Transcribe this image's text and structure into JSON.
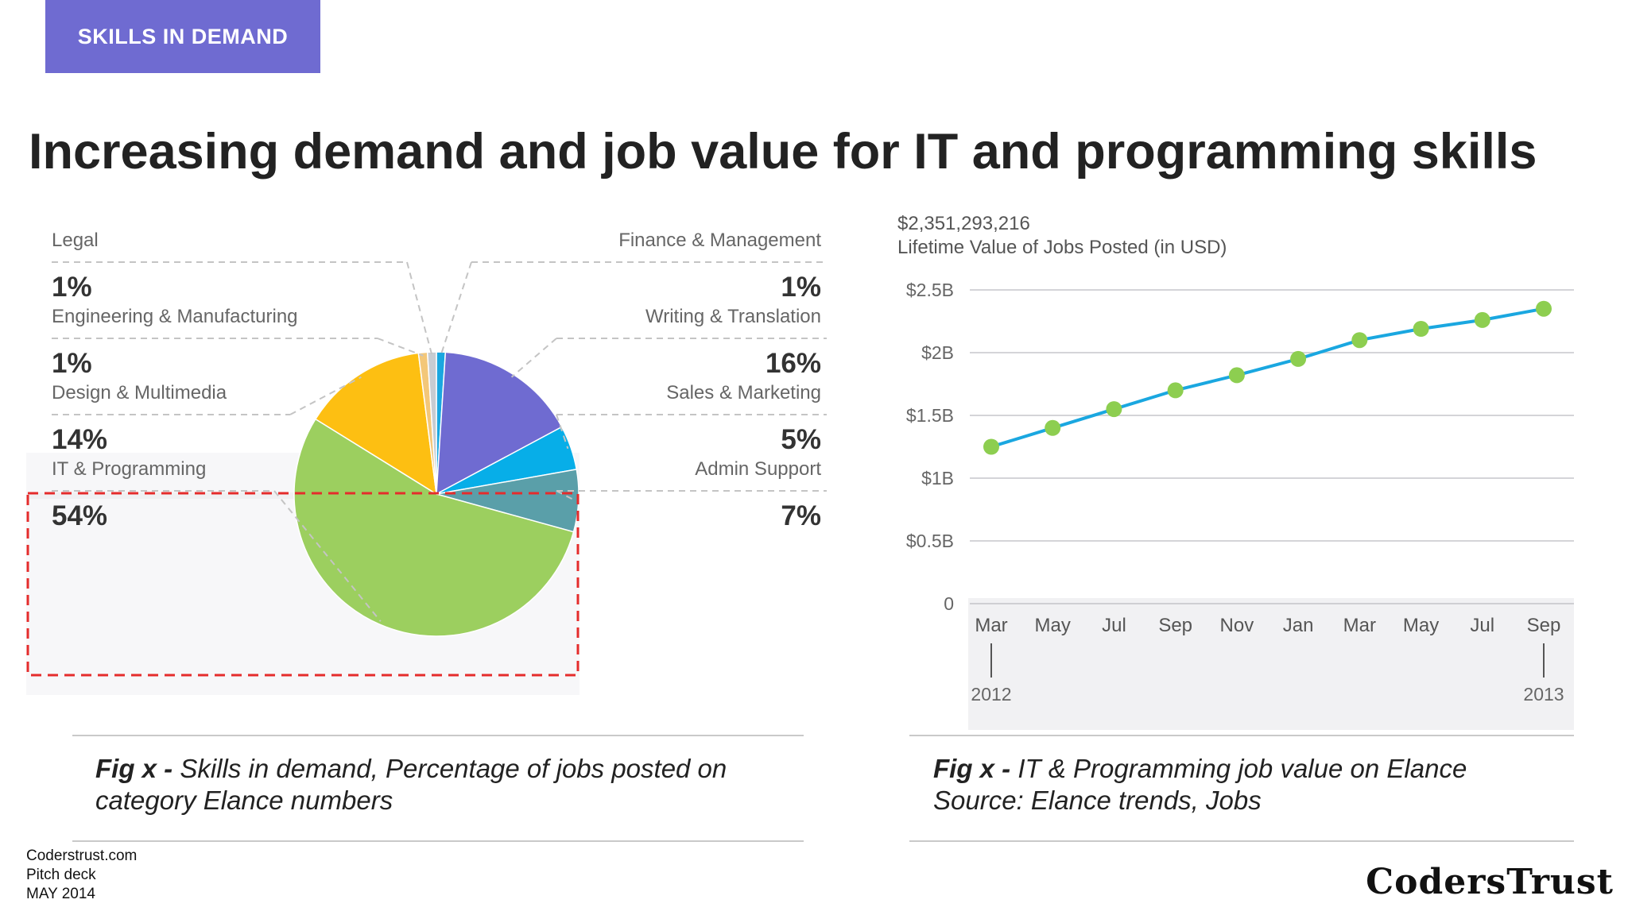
{
  "header": {
    "badge": "SKILLS IN DEMAND"
  },
  "title": "Increasing demand and job value for IT and programming skills",
  "colors": {
    "accent": "#6f6bd1",
    "line": "#1aa7e0",
    "marker": "#8dce50",
    "highlight": "#e52c2c"
  },
  "chart_data": [
    {
      "type": "pie",
      "slices": [
        {
          "label": "Finance & Management",
          "value_label": "1%",
          "value": 1,
          "color": "#1aa7e0"
        },
        {
          "label": "Writing & Translation",
          "value_label": "16%",
          "value": 16,
          "color": "#6f6bd1"
        },
        {
          "label": "Sales & Marketing",
          "value_label": "5%",
          "value": 5,
          "color": "#07aee8"
        },
        {
          "label": "Admin Support",
          "value_label": "7%",
          "value": 7,
          "color": "#5a9fa9"
        },
        {
          "label": "IT & Programming",
          "value_label": "54%",
          "value": 54,
          "color": "#9ccf5f"
        },
        {
          "label": "Design & Multimedia",
          "value_label": "14%",
          "value": 14,
          "color": "#fdbf12"
        },
        {
          "label": "Engineering & Manufacturing",
          "value_label": "1%",
          "value": 1,
          "color": "#f3c779"
        },
        {
          "label": "Legal",
          "value_label": "1%",
          "value": 1,
          "color": "#c7ccd2"
        }
      ]
    },
    {
      "type": "line",
      "value_label": "$2,351,293,216",
      "title": "Lifetime Value of Jobs Posted (in USD)",
      "categories": [
        "Mar",
        "May",
        "Jul",
        "Sep",
        "Nov",
        "Jan",
        "Mar",
        "May",
        "Jul",
        "Sep"
      ],
      "year_labels": [
        "2012",
        "2013"
      ],
      "values": [
        1.25,
        1.4,
        1.55,
        1.7,
        1.82,
        1.95,
        2.1,
        2.19,
        2.26,
        2.35
      ],
      "y_ticks": [
        {
          "value": 0,
          "label": "0"
        },
        {
          "value": 0.5,
          "label": "$0.5B"
        },
        {
          "value": 1,
          "label": "$1B"
        },
        {
          "value": 1.5,
          "label": "$1.5B"
        },
        {
          "value": 2,
          "label": "$2B"
        },
        {
          "value": 2.5,
          "label": "$2.5B"
        }
      ],
      "ylim": [
        0,
        2.5
      ],
      "grid": true
    }
  ],
  "captions": {
    "left": {
      "fig": "Fig x -",
      "text": "Skills in demand, Percentage of jobs posted on category Elance numbers"
    },
    "right": {
      "fig": "Fig x -",
      "line1": "IT & Programming job value on Elance",
      "line2": "Source: Elance trends, Jobs"
    }
  },
  "footer": {
    "line1": "Coderstrust.com",
    "line2": "Pitch deck",
    "line3": "MAY 2014"
  },
  "logo": "CodersTrust"
}
